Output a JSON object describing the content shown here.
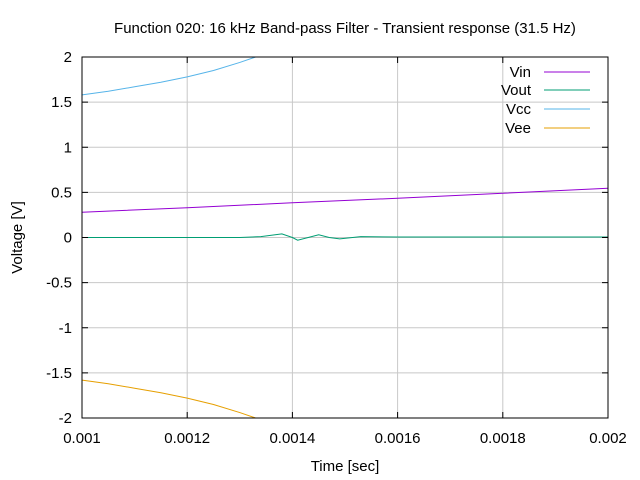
{
  "chart_data": {
    "type": "line",
    "title": "Function 020: 16 kHz Band-pass Filter - Transient response (31.5 Hz)",
    "xlabel": "Time [sec]",
    "ylabel": "Voltage [V]",
    "xlim": [
      0.001,
      0.002
    ],
    "ylim": [
      -2,
      2
    ],
    "x_ticks": [
      "0.001",
      "0.0012",
      "0.0014",
      "0.0016",
      "0.0018",
      "0.002"
    ],
    "y_ticks": [
      "2",
      "1.5",
      "1",
      "0.5",
      "0",
      "-0.5",
      "-1",
      "-1.5",
      "-2"
    ],
    "grid": true,
    "legend_position": "top-right",
    "series": [
      {
        "name": "Vin",
        "color": "#9400d3",
        "points": [
          [
            0.001,
            0.28
          ],
          [
            0.0012,
            0.33
          ],
          [
            0.0014,
            0.385
          ],
          [
            0.0016,
            0.435
          ],
          [
            0.0018,
            0.49
          ],
          [
            0.002,
            0.545
          ]
        ]
      },
      {
        "name": "Vout",
        "color": "#009e73",
        "points": [
          [
            0.001,
            0.0
          ],
          [
            0.0013,
            0.0
          ],
          [
            0.00134,
            0.01
          ],
          [
            0.00138,
            0.04
          ],
          [
            0.0014,
            0.0
          ],
          [
            0.00141,
            -0.03
          ],
          [
            0.00143,
            0.0
          ],
          [
            0.00145,
            0.03
          ],
          [
            0.00147,
            0.0
          ],
          [
            0.00149,
            -0.015
          ],
          [
            0.00153,
            0.01
          ],
          [
            0.0016,
            0.005
          ],
          [
            0.002,
            0.005
          ]
        ]
      },
      {
        "name": "Vcc",
        "color": "#56b4e9",
        "points": [
          [
            0.001,
            1.58
          ],
          [
            0.00105,
            1.62
          ],
          [
            0.0011,
            1.67
          ],
          [
            0.00115,
            1.72
          ],
          [
            0.0012,
            1.78
          ],
          [
            0.00125,
            1.85
          ],
          [
            0.0013,
            1.94
          ],
          [
            0.00133,
            2.0
          ]
        ]
      },
      {
        "name": "Vee",
        "color": "#e69f00",
        "points": [
          [
            0.001,
            -1.58
          ],
          [
            0.00105,
            -1.62
          ],
          [
            0.0011,
            -1.67
          ],
          [
            0.00115,
            -1.72
          ],
          [
            0.0012,
            -1.78
          ],
          [
            0.00125,
            -1.85
          ],
          [
            0.0013,
            -1.94
          ],
          [
            0.00133,
            -2.0
          ]
        ]
      }
    ]
  }
}
